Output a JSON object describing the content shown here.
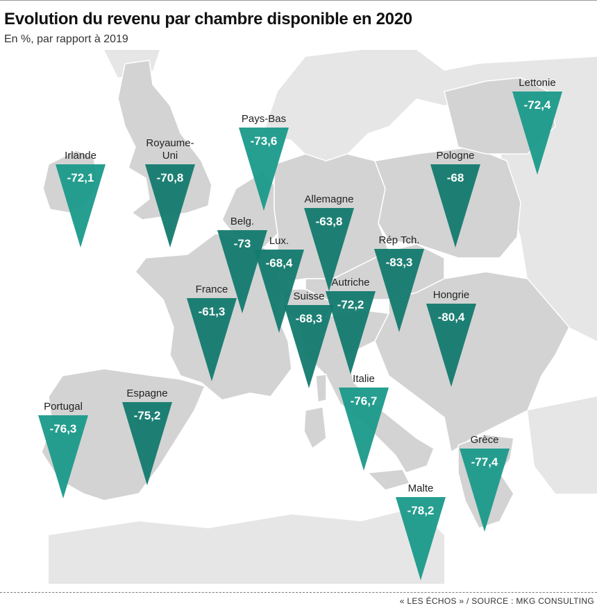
{
  "title": "Evolution du revenu par chambre disponible en 2020",
  "subtitle": "En %, par rapport à 2019",
  "source": "« LES ÉCHOS » / SOURCE : MKG CONSULTING",
  "colors": {
    "sea": "#ffffff",
    "land": "#d3d3d3",
    "land_context": "#e6e6e6",
    "border": "#ffffff",
    "marker_light": "#1a9a8a",
    "marker_dark": "#137a6e"
  },
  "chart_data": {
    "type": "map",
    "unit": "%",
    "items": [
      {
        "country": "Irlande",
        "value": "-72,1"
      },
      {
        "country": "Royaume-\nUni",
        "value": "-70,8"
      },
      {
        "country": "Pays-Bas",
        "value": "-73,6"
      },
      {
        "country": "Lettonie",
        "value": "-72,4"
      },
      {
        "country": "Pologne",
        "value": "-68"
      },
      {
        "country": "Allemagne",
        "value": "-63,8"
      },
      {
        "country": "Belg.",
        "value": "-73"
      },
      {
        "country": "Lux.",
        "value": "-68,4"
      },
      {
        "country": "Rép Tch.",
        "value": "-83,3"
      },
      {
        "country": "France",
        "value": "-61,3"
      },
      {
        "country": "Autriche",
        "value": "-72,2"
      },
      {
        "country": "Suisse",
        "value": "-68,3"
      },
      {
        "country": "Hongrie",
        "value": "-80,4"
      },
      {
        "country": "Italie",
        "value": "-76,7"
      },
      {
        "country": "Espagne",
        "value": "-75,2"
      },
      {
        "country": "Portugal",
        "value": "-76,3"
      },
      {
        "country": "Grèce",
        "value": "-77,4"
      },
      {
        "country": "Malte",
        "value": "-78,2"
      }
    ]
  }
}
